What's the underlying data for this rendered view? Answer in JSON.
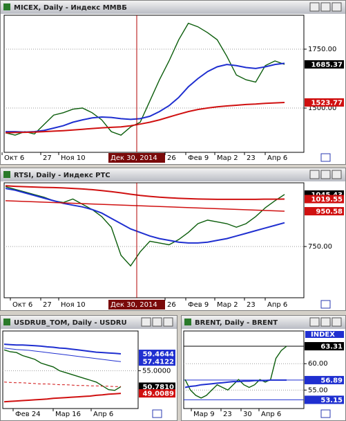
{
  "chart_data": [
    {
      "type": "line",
      "title": "MICEX, Daily - Индекс ММВБ",
      "x_labels": [
        "Окт 6",
        "27",
        "Ноя 10",
        "Дек 30, 2014",
        "26",
        "Фев 9",
        "Мар 2",
        "23",
        "Апр 6"
      ],
      "ylim": [
        1312,
        1894
      ],
      "yticks": [
        {
          "value": 1500,
          "label": "1500.00"
        },
        {
          "value": 1750,
          "label": "1750.00"
        }
      ],
      "series": [
        {
          "color": "#0b5d0b",
          "width": 1.4,
          "values": [
            1395,
            1385,
            1400,
            1390,
            1430,
            1470,
            1480,
            1495,
            1500,
            1480,
            1450,
            1400,
            1385,
            1420,
            1440,
            1530,
            1620,
            1700,
            1790,
            1860,
            1845,
            1820,
            1790,
            1720,
            1640,
            1620,
            1610,
            1680,
            1700,
            1685.37
          ]
        },
        {
          "color": "#1f2fd0",
          "width": 2,
          "values": [
            1400,
            1400,
            1398,
            1400,
            1405,
            1415,
            1425,
            1440,
            1450,
            1458,
            1462,
            1460,
            1455,
            1452,
            1455,
            1465,
            1485,
            1510,
            1545,
            1590,
            1625,
            1655,
            1675,
            1685,
            1680,
            1672,
            1668,
            1675,
            1685,
            1690
          ]
        },
        {
          "color": "#d01010",
          "width": 2,
          "values": [
            1395,
            1396,
            1397,
            1398,
            1400,
            1402,
            1404,
            1407,
            1410,
            1413,
            1416,
            1418,
            1420,
            1425,
            1432,
            1440,
            1450,
            1462,
            1474,
            1485,
            1494,
            1500,
            1505,
            1509,
            1512,
            1515,
            1517,
            1520,
            1522,
            1523.77
          ]
        }
      ],
      "badges": [
        {
          "value": 1685.37,
          "color": "#000000"
        },
        {
          "value": 1523.77,
          "color": "#d01010"
        }
      ],
      "level_lines": false
    },
    {
      "type": "line",
      "title": "RTSI, Daily - Индекс РТС",
      "x_labels": [
        "Окт 6",
        "27",
        "Ноя 10",
        "Дек 30, 2014",
        "26",
        "Фев 9",
        "Мар 2",
        "23",
        "Апр 6"
      ],
      "ylim": [
        459,
        1112
      ],
      "yticks": [
        {
          "value": 750,
          "label": "750.00"
        }
      ],
      "series": [
        {
          "color": "#0b5d0b",
          "width": 1.4,
          "values": [
            1090,
            1075,
            1060,
            1045,
            1030,
            1010,
            1000,
            1020,
            990,
            960,
            920,
            860,
            700,
            640,
            720,
            780,
            770,
            760,
            790,
            830,
            880,
            900,
            890,
            880,
            860,
            880,
            920,
            970,
            1010,
            1045.43
          ]
        },
        {
          "color": "#1f2fd0",
          "width": 2,
          "values": [
            1080,
            1070,
            1055,
            1040,
            1025,
            1010,
            995,
            985,
            975,
            960,
            940,
            910,
            880,
            850,
            830,
            810,
            795,
            785,
            775,
            770,
            770,
            775,
            785,
            795,
            810,
            825,
            840,
            855,
            870,
            885
          ]
        },
        {
          "color": "#d01010",
          "width": 2,
          "values": [
            1095,
            1092,
            1090,
            1088,
            1086,
            1085,
            1083,
            1080,
            1077,
            1073,
            1068,
            1062,
            1055,
            1047,
            1040,
            1035,
            1030,
            1027,
            1024,
            1022,
            1020,
            1019,
            1018,
            1018,
            1018,
            1018,
            1018,
            1019,
            1019,
            1019.55
          ]
        },
        {
          "color": "#d01010",
          "width": 1.5,
          "values": [
            1010,
            950.58
          ]
        }
      ],
      "badges": [
        {
          "value": 1045.43,
          "color": "#000000"
        },
        {
          "value": 1019.55,
          "color": "#d01010"
        },
        {
          "value": 950.58,
          "color": "#d01010"
        }
      ],
      "level_lines": false
    },
    {
      "type": "line",
      "title": "USDRUB_TOM, Daily - USDRU",
      "x_labels": [
        "Фев 24",
        "Мар 16",
        "Апр 6"
      ],
      "ylim": [
        45.0,
        65.5
      ],
      "yticks": [
        {
          "value": 55,
          "label": "55.0000"
        }
      ],
      "series": [
        {
          "color": "#0b5d0b",
          "width": 1.4,
          "values": [
            60.5,
            60,
            59.8,
            59,
            58.5,
            58,
            57,
            56.5,
            56,
            55,
            54.5,
            54,
            53.5,
            53,
            52.5,
            52,
            51,
            50,
            49.8,
            50.781
          ]
        },
        {
          "color": "#1f2fd0",
          "width": 2,
          "values": [
            62,
            61.9,
            61.8,
            61.8,
            61.7,
            61.6,
            61.5,
            61.3,
            61.2,
            61,
            60.9,
            60.7,
            60.5,
            60.3,
            60.1,
            59.9,
            59.8,
            59.7,
            59.6,
            59.4644
          ]
        },
        {
          "color": "#1f2fd0",
          "width": 1,
          "values": [
            61,
            60.8,
            60.6,
            60.5,
            60.4,
            60.2,
            60,
            59.8,
            59.6,
            59.4,
            59.2,
            59,
            58.8,
            58.6,
            58.4,
            58.2,
            58,
            57.8,
            57.6,
            57.4122
          ]
        },
        {
          "color": "#d01010",
          "width": 2,
          "values": [
            46.8,
            46.9,
            47,
            47.1,
            47.2,
            47.3,
            47.4,
            47.5,
            47.7,
            47.8,
            47.9,
            48,
            48.1,
            48.2,
            48.3,
            48.5,
            48.6,
            48.8,
            48.9,
            49.0089
          ]
        },
        {
          "color": "#d01010",
          "width": 1,
          "dash": true,
          "values": [
            52,
            51.9,
            51.8,
            51.8,
            51.7,
            51.6,
            51.5,
            51.5,
            51.4,
            51.3,
            51.3,
            51.2,
            51.1,
            51.1,
            51,
            51,
            50.9,
            50.9,
            50.8,
            50.8
          ]
        }
      ],
      "badges": [
        {
          "value": 59.4644,
          "color": "#1f2fd0"
        },
        {
          "value": 57.4122,
          "color": "#1f2fd0"
        },
        {
          "value": 50.781,
          "label": "50.7810",
          "color": "#000000"
        },
        {
          "value": 49.0089,
          "color": "#d01010"
        }
      ],
      "level_lines": false
    },
    {
      "type": "line",
      "title": "BRENT, Daily - BRENT",
      "indicator": "INDEX",
      "x_labels": [
        "Мар 9",
        "23",
        "30",
        "Апр 6"
      ],
      "ylim": [
        51.5,
        66.2
      ],
      "yticks": [
        {
          "value": 60,
          "label": "60.00"
        },
        {
          "value": 55,
          "label": "55.00"
        }
      ],
      "series": [
        {
          "color": "#0b5d0b",
          "width": 1.4,
          "values": [
            57,
            55,
            54,
            53.5,
            54,
            55,
            56,
            55.5,
            55,
            56,
            57,
            56,
            55.5,
            56,
            57,
            56.5,
            57,
            61,
            62.5,
            63.31
          ]
        },
        {
          "color": "#1f2fd0",
          "width": 2,
          "values": [
            55.5,
            55.7,
            55.8,
            56,
            56.1,
            56.2,
            56.3,
            56.4,
            56.5,
            56.6,
            56.6,
            56.7,
            56.7,
            56.8,
            56.8,
            56.8,
            56.9,
            56.9,
            56.9,
            56.89
          ]
        }
      ],
      "badges": [
        {
          "value": 63.31,
          "color": "#000000"
        },
        {
          "value": 56.89,
          "color": "#1f2fd0"
        },
        {
          "value": 53.15,
          "color": "#1f2fd0"
        }
      ],
      "level_lines": true
    }
  ]
}
